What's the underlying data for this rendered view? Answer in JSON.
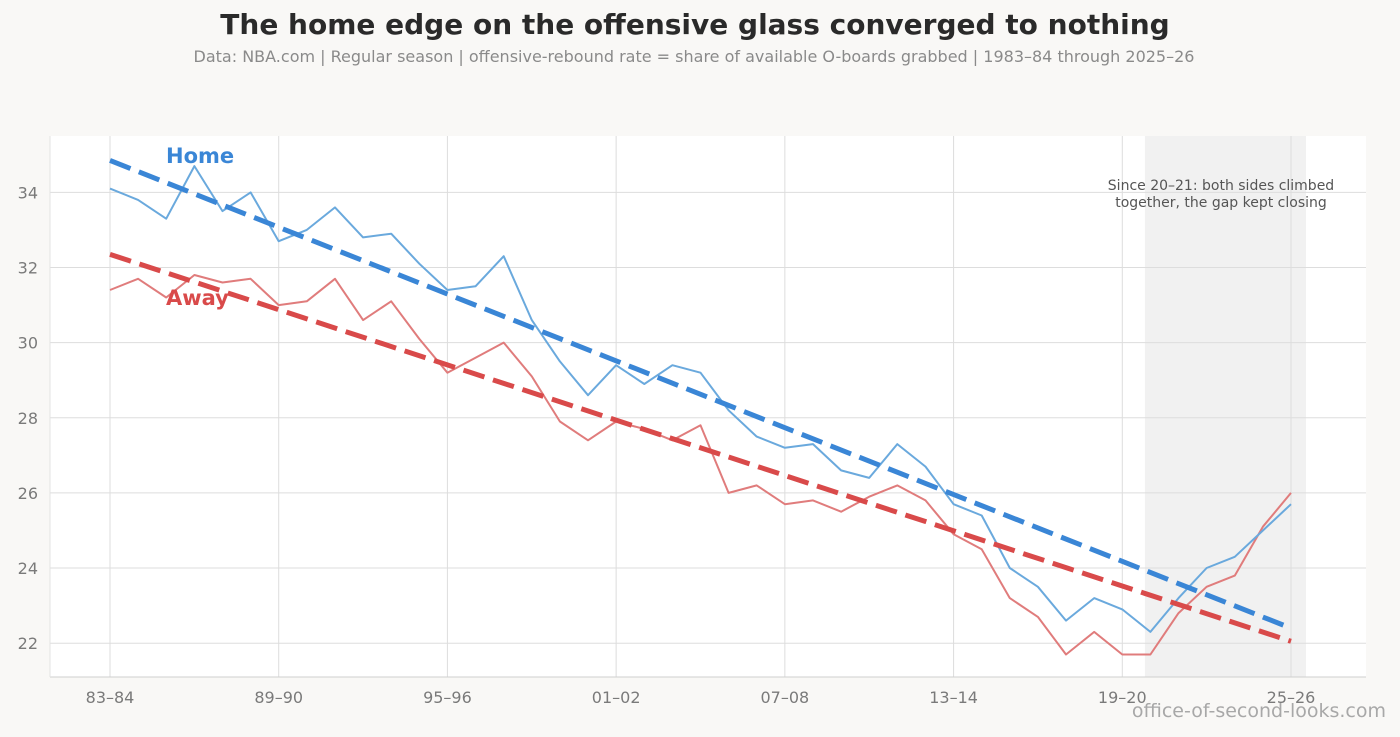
{
  "title": "The home edge on the offensive glass converged to nothing",
  "subtitle": "Data: NBA.com  |  Regular season  |  offensive-rebound rate = share of available O-boards grabbed  |  1983–84 through 2025–26",
  "credit": "office-of-second-looks.com",
  "colors": {
    "home": "#3a86d6",
    "away": "#d94a4a",
    "home_line": "#6aa9dd",
    "away_line": "#e07c7c",
    "grid": "#dddddd",
    "shade": "#f1f1f1"
  },
  "chart_data": {
    "type": "line",
    "xlabel": "",
    "ylabel": "",
    "ylim": [
      21.1,
      35.5
    ],
    "grid": true,
    "x_tick_labels": [
      "83–84",
      "89–90",
      "95–96",
      "01–02",
      "07–08",
      "13–14",
      "19–20",
      "25–26"
    ],
    "y_ticks": [
      22,
      24,
      26,
      28,
      30,
      32,
      34
    ],
    "x": [
      "83–84",
      "84–85",
      "85–86",
      "86–87",
      "87–88",
      "88–89",
      "89–90",
      "90–91",
      "91–92",
      "92–93",
      "93–94",
      "94–95",
      "95–96",
      "96–97",
      "97–98",
      "98–99",
      "99–00",
      "00–01",
      "01–02",
      "02–03",
      "03–04",
      "04–05",
      "05–06",
      "06–07",
      "07–08",
      "08–09",
      "09–10",
      "10–11",
      "11–12",
      "12–13",
      "13–14",
      "14–15",
      "15–16",
      "16–17",
      "17–18",
      "18–19",
      "19–20",
      "20–21",
      "21–22",
      "22–23",
      "23–24",
      "24–25",
      "25–26"
    ],
    "series": [
      {
        "name": "Home",
        "values": [
          34.1,
          33.8,
          33.3,
          34.7,
          33.5,
          34.0,
          32.7,
          33.0,
          33.6,
          32.8,
          32.9,
          32.1,
          31.4,
          31.5,
          32.3,
          30.6,
          29.5,
          28.6,
          29.4,
          28.9,
          29.4,
          29.2,
          28.2,
          27.5,
          27.2,
          27.3,
          26.6,
          26.4,
          27.3,
          26.7,
          25.7,
          25.4,
          24.0,
          23.5,
          22.6,
          23.2,
          22.9,
          22.3,
          23.2,
          24.0,
          24.3,
          25.0,
          25.7
        ]
      },
      {
        "name": "Away",
        "values": [
          31.4,
          31.7,
          31.2,
          31.8,
          31.6,
          31.7,
          31.0,
          31.1,
          31.7,
          30.6,
          31.1,
          30.1,
          29.2,
          29.6,
          30.0,
          29.1,
          27.9,
          27.4,
          27.9,
          27.7,
          27.4,
          27.8,
          26.0,
          26.2,
          25.7,
          25.8,
          25.5,
          25.9,
          26.2,
          25.8,
          24.9,
          24.5,
          23.2,
          22.7,
          21.7,
          22.3,
          21.7,
          21.7,
          22.8,
          23.5,
          23.8,
          25.1,
          26.0
        ]
      }
    ],
    "trend_lines": [
      {
        "name": "Home",
        "start": 34.85,
        "end": 22.4
      },
      {
        "name": "Away",
        "start": 32.35,
        "end": 22.05
      }
    ],
    "shaded_region": [
      "20–21",
      "25–26"
    ],
    "annotation": "Since 20–21: both sides climbed together, the gap kept closing"
  }
}
